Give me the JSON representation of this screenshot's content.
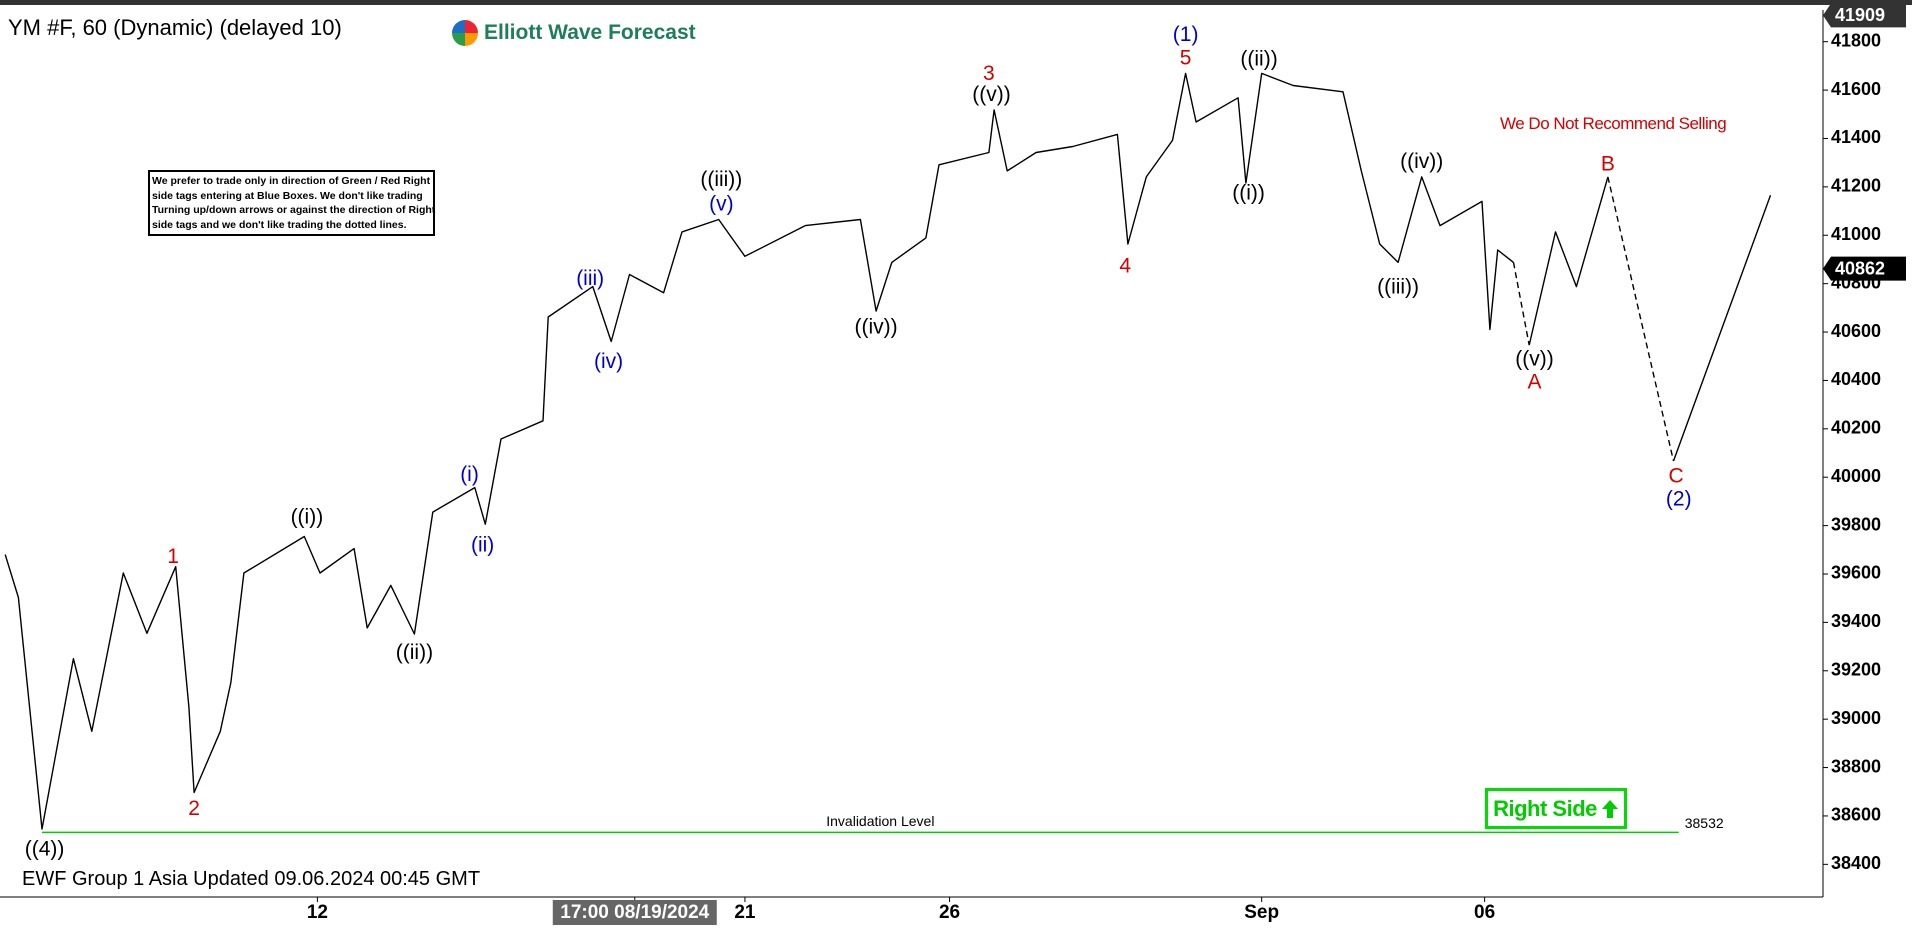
{
  "chart_data": {
    "type": "line",
    "title": "YM #F, 60 (Dynamic) (delayed 10)",
    "xlim": [
      0,
      695
    ],
    "xticks": [
      {
        "value": 121,
        "label": "12"
      },
      {
        "value": 242,
        "label": "17:00 08/19/2024",
        "highlight": true
      },
      {
        "value": 284,
        "label": "21"
      },
      {
        "value": 362,
        "label": "26"
      },
      {
        "value": 481,
        "label": "Sep"
      },
      {
        "value": 566,
        "label": "06"
      }
    ],
    "ylim": [
      38265,
      41931
    ],
    "yticks": [
      38400,
      38600,
      38800,
      39000,
      39200,
      39400,
      39600,
      39800,
      40000,
      40200,
      40400,
      40600,
      40800,
      41000,
      41200,
      41400,
      41600,
      41800
    ],
    "grid": false,
    "series": [
      {
        "color": "#000000",
        "style": "solid",
        "x": [
          2,
          7,
          16,
          28,
          35,
          47,
          56,
          67,
          72,
          74,
          84,
          88,
          93,
          116,
          122,
          135,
          140,
          149,
          158,
          165,
          181,
          185,
          191,
          207,
          209,
          226,
          233,
          240,
          253,
          260,
          274,
          284,
          307,
          328,
          334,
          340,
          353,
          358,
          377,
          379,
          384,
          395,
          409,
          426,
          430,
          437,
          447,
          452,
          456,
          472,
          475,
          481,
          493,
          512,
          519,
          526,
          533,
          542,
          549,
          565,
          568,
          571,
          577
        ],
        "values": [
          39680,
          39503,
          38546,
          39250,
          38950,
          39604,
          39355,
          39630,
          39050,
          38697,
          38950,
          39150,
          39604,
          39755,
          39604,
          39705,
          39377,
          39553,
          39352,
          39856,
          39957,
          39806,
          40158,
          40233,
          40662,
          40788,
          40561,
          40838,
          40762,
          41014,
          41065,
          40913,
          41040,
          41065,
          40687,
          40888,
          40989,
          41291,
          41342,
          41518,
          41266,
          41342,
          41367,
          41417,
          40964,
          41241,
          41392,
          41669,
          41468,
          41568,
          41216,
          41669,
          41619,
          41593,
          41266,
          40964,
          40888,
          41241,
          41040,
          41140,
          40611,
          40939,
          40888
        ]
      },
      {
        "color": "#000000",
        "style": "dashed",
        "x": [
          577,
          583,
          null,
          613,
          638
        ],
        "values": [
          40888,
          40546,
          null,
          41241,
          40067
        ]
      },
      {
        "color": "#000000",
        "style": "solid",
        "x": [
          583,
          593,
          601,
          613,
          null,
          638,
          675
        ],
        "values": [
          40546,
          41014,
          40788,
          41241,
          null,
          40067,
          41165
        ]
      }
    ],
    "annotations": [
      {
        "text": "((4))",
        "x": 17,
        "y": 38460,
        "color": "#000000"
      },
      {
        "text": "1",
        "x": 66,
        "y": 39669,
        "color": "#d40000"
      },
      {
        "text": "2",
        "x": 74,
        "y": 38627,
        "color": "#d40000"
      },
      {
        "text": "((i))",
        "x": 117,
        "y": 39831,
        "color": "#000000"
      },
      {
        "text": "((ii))",
        "x": 158,
        "y": 39271,
        "color": "#000000"
      },
      {
        "text": "(i)",
        "x": 179,
        "y": 40007,
        "color": "#0000cc"
      },
      {
        "text": "(ii)",
        "x": 184,
        "y": 39715,
        "color": "#0000cc"
      },
      {
        "text": "(iii)",
        "x": 225,
        "y": 40818,
        "color": "#0000cc"
      },
      {
        "text": "(iv)",
        "x": 232,
        "y": 40475,
        "color": "#0000cc"
      },
      {
        "text": "((iii))",
        "x": 275,
        "y": 41226,
        "color": "#000000"
      },
      {
        "text": "(v)",
        "x": 275,
        "y": 41125,
        "color": "#0000cc"
      },
      {
        "text": "((iv))",
        "x": 334,
        "y": 40616,
        "color": "#000000"
      },
      {
        "text": "3",
        "x": 377,
        "y": 41664,
        "color": "#d40000"
      },
      {
        "text": "((v))",
        "x": 378,
        "y": 41578,
        "color": "#000000"
      },
      {
        "text": "4",
        "x": 429,
        "y": 40868,
        "color": "#d40000"
      },
      {
        "text": "(1)",
        "x": 452,
        "y": 41825,
        "color": "#0000cc"
      },
      {
        "text": "5",
        "x": 452,
        "y": 41729,
        "color": "#d40000"
      },
      {
        "text": "((ii))",
        "x": 480,
        "y": 41724,
        "color": "#000000"
      },
      {
        "text": "((i))",
        "x": 476,
        "y": 41170,
        "color": "#000000"
      },
      {
        "text": "((iv))",
        "x": 542,
        "y": 41301,
        "color": "#000000"
      },
      {
        "text": "((iii))",
        "x": 533,
        "y": 40783,
        "color": "#000000"
      },
      {
        "text": "((v))",
        "x": 585,
        "y": 40485,
        "color": "#000000"
      },
      {
        "text": "A",
        "x": 585,
        "y": 40390,
        "color": "#d40000"
      },
      {
        "text": "B",
        "x": 613,
        "y": 41291,
        "color": "#d40000"
      },
      {
        "text": "C",
        "x": 639,
        "y": 40002,
        "color": "#d40000"
      },
      {
        "text": "(2)",
        "x": 640,
        "y": 39906,
        "color": "#0000cc"
      }
    ],
    "invalidation": {
      "label": "Invalidation Level",
      "value": 38532,
      "x": [
        16,
        640
      ],
      "color": "#00cc00"
    },
    "price_tags": [
      {
        "value": 41909,
        "color": "#333333"
      },
      {
        "value": 40862,
        "color": "#000000"
      }
    ]
  },
  "logo": "Elliott Wave Forecast",
  "note": [
    "We prefer to trade only in direction of Green / Red Right",
    "side tags entering at Blue Boxes. We don't like trading",
    "Turning up/down arrows or against the direction of Right",
    "side tags and we don't like trading the dotted lines."
  ],
  "warning": "We Do Not Recommend Selling",
  "right_side": "Right Side",
  "footer": "EWF Group 1 Asia Updated 09.06.2024 00:45 GMT"
}
